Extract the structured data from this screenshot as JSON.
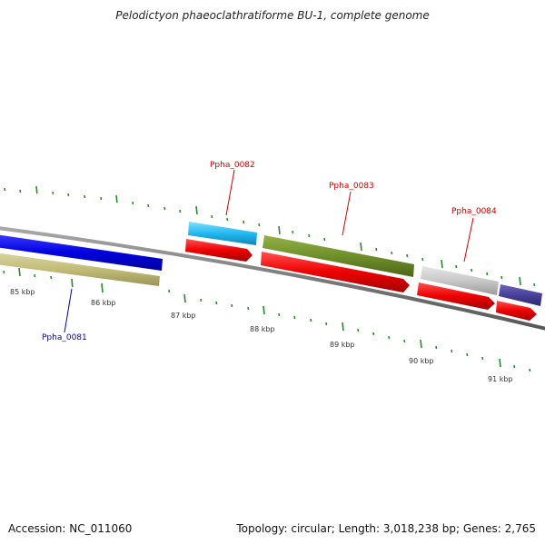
{
  "title": "Pelodictyon phaeoclathratiforme BU-1, complete genome",
  "footer": {
    "accession": "Accession: NC_011060",
    "summary": "Topology: circular; Length: 3,018,238 bp; Genes: 2,765"
  },
  "colors": {
    "backbone": "#7a7a7a",
    "tick": "#2a8a2a",
    "label_red": "#cc0000",
    "label_blue": "#0000aa"
  },
  "scale_labels": [
    "85 kbp",
    "86 kbp",
    "87 kbp",
    "88 kbp",
    "89 kbp",
    "90 kbp",
    "91 kbp"
  ],
  "genes": [
    {
      "label": "Ppha_0081",
      "label_color": "#0000aa",
      "tracks": [
        "cds-blue",
        "feature-khaki"
      ]
    },
    {
      "label": "Ppha_0082",
      "label_color": "#cc0000",
      "tracks": [
        "cds-cyan",
        "orf-red"
      ]
    },
    {
      "label": "Ppha_0083",
      "label_color": "#cc0000",
      "tracks": [
        "cds-olive",
        "orf-red"
      ]
    },
    {
      "label": "Ppha_0084",
      "label_color": "#cc0000",
      "tracks": [
        "cds-grey",
        "orf-red"
      ]
    },
    {
      "label": "",
      "tracks": [
        "cds-indigo",
        "orf-red"
      ]
    }
  ]
}
